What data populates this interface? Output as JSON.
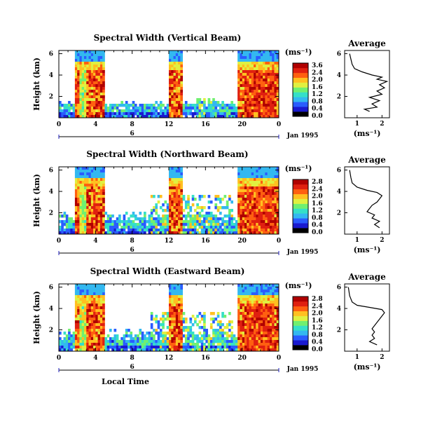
{
  "chart_data": {
    "type": "heatmap",
    "x_unit_label": "Local Time",
    "date_label": "Jan 1995",
    "day_marker": "6",
    "x_ticks": [
      "0",
      "4",
      "8",
      "12",
      "16",
      "20",
      "0"
    ],
    "ylabel": "Height (km)",
    "avg_title": "Average",
    "avg_xlabel": "(ms⁻¹)",
    "unit_label": "(ms⁻¹)",
    "panels": [
      {
        "title": "Spectral Width (Vertical Beam)",
        "y_ticks": [
          "6",
          "4",
          "2"
        ],
        "colorbar_ticks": [
          "3.6",
          "2.4",
          "2.0",
          "1.6",
          "1.2",
          "0.8",
          "0.4",
          "0.0"
        ],
        "avg_x_ticks": [
          "1",
          "2"
        ],
        "avg_y_ticks": [
          "6",
          "4",
          "2"
        ],
        "avg_profile": [
          [
            1.5,
            0.6
          ],
          [
            1.3,
            0.8
          ],
          [
            1.8,
            1.0
          ],
          [
            1.6,
            1.3
          ],
          [
            1.9,
            1.6
          ],
          [
            1.5,
            1.9
          ],
          [
            2.0,
            2.2
          ],
          [
            1.8,
            2.5
          ],
          [
            2.1,
            2.8
          ],
          [
            1.9,
            3.1
          ],
          [
            2.2,
            3.4
          ],
          [
            1.8,
            3.6
          ],
          [
            2.0,
            3.8
          ],
          [
            1.6,
            4.0
          ],
          [
            1.2,
            4.3
          ],
          [
            0.9,
            4.6
          ],
          [
            0.8,
            5.0
          ],
          [
            0.75,
            5.5
          ],
          [
            0.7,
            6.0
          ]
        ]
      },
      {
        "title": "Spectral Width (Northward Beam)",
        "y_ticks": [
          "6",
          "4",
          "2"
        ],
        "colorbar_ticks": [
          "2.8",
          "2.4",
          "2.0",
          "1.6",
          "1.2",
          "0.8",
          "0.4",
          "0.0"
        ],
        "avg_x_ticks": [
          "1",
          "2"
        ],
        "avg_y_ticks": [
          "6",
          "4",
          "2"
        ],
        "avg_profile": [
          [
            1.9,
            0.6
          ],
          [
            1.7,
            0.9
          ],
          [
            1.9,
            1.2
          ],
          [
            1.6,
            1.5
          ],
          [
            1.7,
            1.8
          ],
          [
            1.4,
            2.1
          ],
          [
            1.5,
            2.4
          ],
          [
            1.6,
            2.7
          ],
          [
            1.8,
            3.0
          ],
          [
            1.9,
            3.3
          ],
          [
            2.0,
            3.6
          ],
          [
            1.8,
            3.9
          ],
          [
            1.4,
            4.1
          ],
          [
            1.0,
            4.4
          ],
          [
            0.8,
            4.8
          ],
          [
            0.75,
            5.3
          ],
          [
            0.7,
            6.0
          ]
        ]
      },
      {
        "title": "Spectral Width (Eastward Beam)",
        "y_ticks": [
          "6",
          "4",
          "2"
        ],
        "colorbar_ticks": [
          "2.8",
          "2.4",
          "2.0",
          "1.6",
          "1.2",
          "0.8",
          "0.4",
          "0.0"
        ],
        "avg_x_ticks": [
          "1",
          "2"
        ],
        "avg_y_ticks": [
          "6",
          "4",
          "2"
        ],
        "avg_profile": [
          [
            1.8,
            0.6
          ],
          [
            1.5,
            0.9
          ],
          [
            1.7,
            1.2
          ],
          [
            1.6,
            1.5
          ],
          [
            1.7,
            1.8
          ],
          [
            1.6,
            2.1
          ],
          [
            1.7,
            2.4
          ],
          [
            1.8,
            2.7
          ],
          [
            1.9,
            3.0
          ],
          [
            2.0,
            3.3
          ],
          [
            2.1,
            3.6
          ],
          [
            2.0,
            3.9
          ],
          [
            1.5,
            4.1
          ],
          [
            1.0,
            4.3
          ],
          [
            0.8,
            4.6
          ],
          [
            0.7,
            5.2
          ],
          [
            0.65,
            6.0
          ]
        ]
      }
    ],
    "colorscale": [
      "#000000",
      "#1a1ad0",
      "#2a5cff",
      "#33b8f0",
      "#35e0c8",
      "#70f070",
      "#e0f040",
      "#ffc020",
      "#ff6010",
      "#e02010",
      "#b00000"
    ]
  }
}
